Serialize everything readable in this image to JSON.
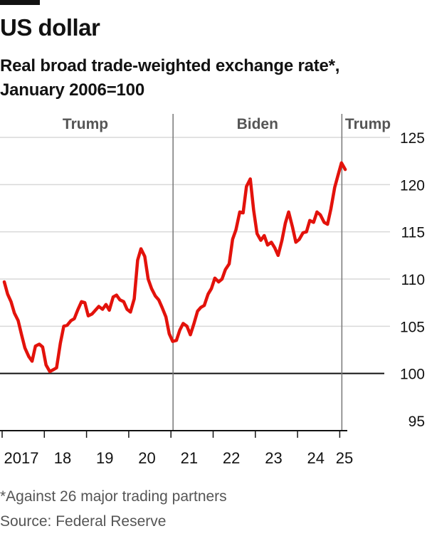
{
  "title": "US dollar",
  "subtitle_line1": "Real broad trade-weighted exchange rate*,",
  "subtitle_line2": "January 2006=100",
  "footnote": "*Against 26 major trading partners",
  "source": "Source: Federal Reserve",
  "colors": {
    "line": "#e3120b",
    "text": "#121212",
    "grid": "#d9d9d9",
    "muted": "#555555"
  },
  "chart_data": {
    "type": "line",
    "title": "US dollar",
    "subtitle": "Real broad trade-weighted exchange rate*, January 2006=100",
    "xlabel": "",
    "ylabel": "",
    "xlim": [
      2017.0,
      2025.3
    ],
    "ylim": [
      95,
      125
    ],
    "y_axis_side": "right",
    "y_ticks": [
      95,
      100,
      105,
      110,
      115,
      120,
      125
    ],
    "baseline": 100,
    "x_ticks": [
      {
        "x": 2017.0,
        "label": "2017"
      },
      {
        "x": 2018.0,
        "label": "18"
      },
      {
        "x": 2019.0,
        "label": "19"
      },
      {
        "x": 2020.0,
        "label": "20"
      },
      {
        "x": 2021.0,
        "label": "21"
      },
      {
        "x": 2022.0,
        "label": "22"
      },
      {
        "x": 2023.0,
        "label": "23"
      },
      {
        "x": 2024.0,
        "label": "24"
      },
      {
        "x": 2025.0,
        "label": "25"
      }
    ],
    "grid": true,
    "periods": [
      {
        "label": "Trump",
        "start": 2017.0,
        "end": 2021.05
      },
      {
        "label": "Biden",
        "start": 2021.05,
        "end": 2025.05
      },
      {
        "label": "Trump",
        "start": 2025.05,
        "end": 2025.3
      }
    ],
    "series": [
      {
        "color": "#e3120b",
        "points": [
          [
            2017.05,
            109.7
          ],
          [
            2017.13,
            108.4
          ],
          [
            2017.21,
            107.6
          ],
          [
            2017.29,
            106.4
          ],
          [
            2017.38,
            105.6
          ],
          [
            2017.46,
            104.1
          ],
          [
            2017.54,
            102.7
          ],
          [
            2017.63,
            101.8
          ],
          [
            2017.71,
            101.3
          ],
          [
            2017.79,
            102.9
          ],
          [
            2017.88,
            103.1
          ],
          [
            2017.96,
            102.8
          ],
          [
            2018.04,
            100.9
          ],
          [
            2018.13,
            100.2
          ],
          [
            2018.21,
            100.4
          ],
          [
            2018.29,
            100.6
          ],
          [
            2018.38,
            103.2
          ],
          [
            2018.46,
            105.0
          ],
          [
            2018.54,
            105.1
          ],
          [
            2018.63,
            105.6
          ],
          [
            2018.71,
            105.8
          ],
          [
            2018.79,
            106.7
          ],
          [
            2018.88,
            107.6
          ],
          [
            2018.96,
            107.5
          ],
          [
            2019.04,
            106.1
          ],
          [
            2019.13,
            106.3
          ],
          [
            2019.21,
            106.7
          ],
          [
            2019.29,
            107.1
          ],
          [
            2019.38,
            106.8
          ],
          [
            2019.46,
            107.3
          ],
          [
            2019.54,
            106.7
          ],
          [
            2019.63,
            108.1
          ],
          [
            2019.71,
            108.3
          ],
          [
            2019.79,
            107.8
          ],
          [
            2019.88,
            107.6
          ],
          [
            2019.96,
            106.8
          ],
          [
            2020.04,
            106.5
          ],
          [
            2020.13,
            107.9
          ],
          [
            2020.21,
            112.0
          ],
          [
            2020.29,
            113.2
          ],
          [
            2020.38,
            112.4
          ],
          [
            2020.46,
            110.0
          ],
          [
            2020.54,
            109.0
          ],
          [
            2020.63,
            108.2
          ],
          [
            2020.71,
            107.8
          ],
          [
            2020.79,
            107.0
          ],
          [
            2020.88,
            106.0
          ],
          [
            2020.96,
            104.2
          ],
          [
            2021.04,
            103.4
          ],
          [
            2021.13,
            103.5
          ],
          [
            2021.21,
            104.6
          ],
          [
            2021.29,
            105.3
          ],
          [
            2021.38,
            105.0
          ],
          [
            2021.46,
            104.1
          ],
          [
            2021.54,
            105.2
          ],
          [
            2021.63,
            106.6
          ],
          [
            2021.71,
            107.0
          ],
          [
            2021.79,
            107.2
          ],
          [
            2021.88,
            108.4
          ],
          [
            2021.96,
            109.0
          ],
          [
            2022.04,
            110.1
          ],
          [
            2022.13,
            109.7
          ],
          [
            2022.21,
            110.0
          ],
          [
            2022.29,
            111.0
          ],
          [
            2022.38,
            111.6
          ],
          [
            2022.46,
            114.2
          ],
          [
            2022.54,
            115.2
          ],
          [
            2022.63,
            117.1
          ],
          [
            2022.71,
            117.0
          ],
          [
            2022.79,
            119.8
          ],
          [
            2022.88,
            120.6
          ],
          [
            2022.96,
            117.3
          ],
          [
            2023.04,
            114.8
          ],
          [
            2023.13,
            114.1
          ],
          [
            2023.21,
            114.6
          ],
          [
            2023.29,
            113.6
          ],
          [
            2023.38,
            113.9
          ],
          [
            2023.46,
            113.3
          ],
          [
            2023.54,
            112.5
          ],
          [
            2023.63,
            114.1
          ],
          [
            2023.71,
            115.9
          ],
          [
            2023.79,
            117.1
          ],
          [
            2023.88,
            115.5
          ],
          [
            2023.96,
            113.9
          ],
          [
            2024.04,
            114.2
          ],
          [
            2024.13,
            114.9
          ],
          [
            2024.21,
            115.0
          ],
          [
            2024.29,
            116.2
          ],
          [
            2024.38,
            116.0
          ],
          [
            2024.46,
            117.1
          ],
          [
            2024.54,
            116.8
          ],
          [
            2024.63,
            116.0
          ],
          [
            2024.71,
            115.8
          ],
          [
            2024.79,
            117.4
          ],
          [
            2024.88,
            119.7
          ],
          [
            2024.96,
            121.0
          ],
          [
            2025.04,
            122.3
          ],
          [
            2025.13,
            121.6
          ]
        ]
      }
    ]
  }
}
